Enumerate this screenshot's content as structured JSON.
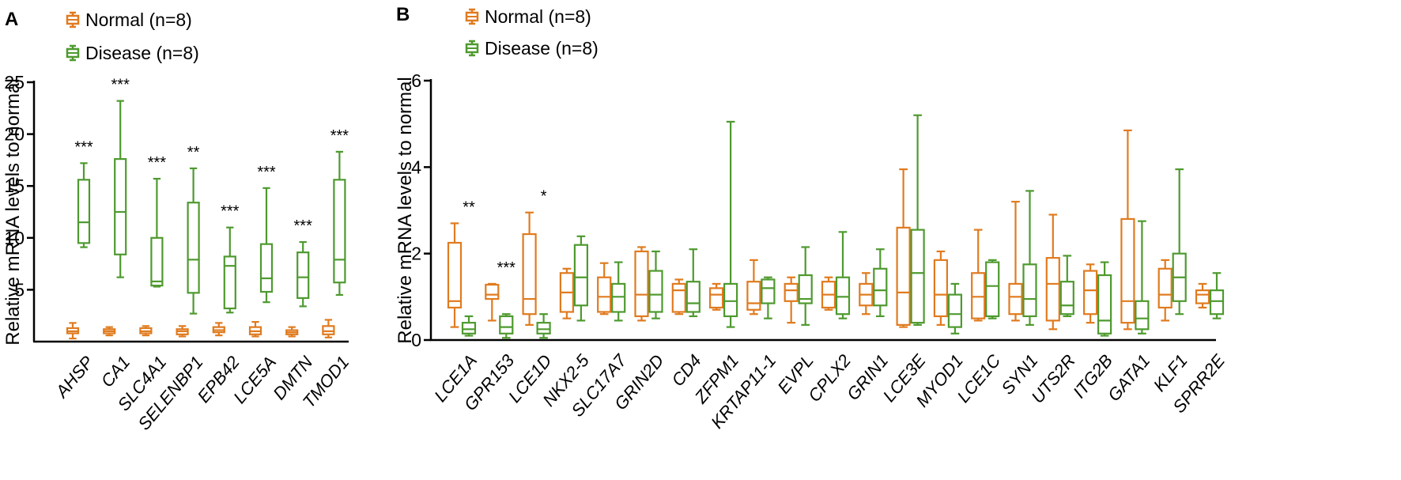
{
  "chart_data": [
    {
      "panel": "A",
      "type": "box",
      "title": "",
      "xlabel": "",
      "ylabel": "Relative mRNA levels to normal",
      "ylim": [
        0,
        25
      ],
      "yticks": [
        5,
        10,
        15,
        20,
        25
      ],
      "legend": [
        {
          "name": "Normal (n=8)",
          "color": "#E07B1F"
        },
        {
          "name": "Disease (n=8)",
          "color": "#4E9A2F"
        }
      ],
      "categories": [
        "AHSP",
        "CA1",
        "SLC4A1",
        "SELENBP1",
        "EPB42",
        "LCE5A",
        "DMTN",
        "TMOD1"
      ],
      "series": [
        {
          "name": "Normal (n=8)",
          "color": "#E07B1F",
          "boxes": [
            {
              "min": 0.3,
              "q1": 0.8,
              "median": 1.0,
              "q3": 1.3,
              "max": 1.8
            },
            {
              "min": 0.6,
              "q1": 0.8,
              "median": 1.0,
              "q3": 1.2,
              "max": 1.4
            },
            {
              "min": 0.6,
              "q1": 0.8,
              "median": 1.0,
              "q3": 1.3,
              "max": 1.5
            },
            {
              "min": 0.5,
              "q1": 0.7,
              "median": 1.0,
              "q3": 1.2,
              "max": 1.5
            },
            {
              "min": 0.6,
              "q1": 0.9,
              "median": 1.1,
              "q3": 1.4,
              "max": 1.8
            },
            {
              "min": 0.5,
              "q1": 0.7,
              "median": 1.0,
              "q3": 1.4,
              "max": 1.9
            },
            {
              "min": 0.5,
              "q1": 0.7,
              "median": 0.9,
              "q3": 1.1,
              "max": 1.4
            },
            {
              "min": 0.4,
              "q1": 0.7,
              "median": 1.0,
              "q3": 1.5,
              "max": 2.1
            }
          ]
        },
        {
          "name": "Disease (n=8)",
          "color": "#4E9A2F",
          "boxes": [
            {
              "min": 9.1,
              "q1": 9.5,
              "median": 11.5,
              "q3": 15.6,
              "max": 17.2
            },
            {
              "min": 6.2,
              "q1": 8.4,
              "median": 12.5,
              "q3": 17.6,
              "max": 23.2
            },
            {
              "min": 5.3,
              "q1": 5.4,
              "median": 5.8,
              "q3": 10.0,
              "max": 15.7
            },
            {
              "min": 2.7,
              "q1": 4.7,
              "median": 7.9,
              "q3": 13.4,
              "max": 16.7
            },
            {
              "min": 2.8,
              "q1": 3.2,
              "median": 7.3,
              "q3": 8.2,
              "max": 11.0
            },
            {
              "min": 3.8,
              "q1": 4.8,
              "median": 6.1,
              "q3": 9.4,
              "max": 14.8
            },
            {
              "min": 3.4,
              "q1": 4.2,
              "median": 6.2,
              "q3": 8.6,
              "max": 9.6
            },
            {
              "min": 4.5,
              "q1": 5.7,
              "median": 7.9,
              "q3": 15.6,
              "max": 18.3
            }
          ]
        }
      ],
      "annotations": [
        "***",
        "***",
        "***",
        "**",
        "***",
        "***",
        "***",
        "***"
      ]
    },
    {
      "panel": "B",
      "type": "box",
      "title": "",
      "xlabel": "",
      "ylabel": "Relative mRNA levels to normal",
      "ylim": [
        0,
        6
      ],
      "yticks": [
        0,
        2,
        4,
        6
      ],
      "legend": [
        {
          "name": "Normal (n=8)",
          "color": "#E07B1F"
        },
        {
          "name": "Disease (n=8)",
          "color": "#4E9A2F"
        }
      ],
      "categories": [
        "LCE1A",
        "GPR153",
        "LCE1D",
        "NKX2-5",
        "SLC17A7",
        "GRIN2D",
        "CD4",
        "ZFPM1",
        "KRTAP11-1",
        "EVPL",
        "CPLX2",
        "GRIN1",
        "LCE3E",
        "MYOD1",
        "LCE1C",
        "SYN1",
        "UTS2R",
        "ITG2B",
        "GATA1",
        "KLF1",
        "SPRR2E"
      ],
      "series": [
        {
          "name": "Normal (n=8)",
          "color": "#E07B1F",
          "boxes": [
            {
              "min": 0.3,
              "q1": 0.75,
              "median": 0.9,
              "q3": 2.25,
              "max": 2.7
            },
            {
              "min": 0.45,
              "q1": 0.95,
              "median": 1.05,
              "q3": 1.28,
              "max": 1.3
            },
            {
              "min": 0.35,
              "q1": 0.6,
              "median": 0.95,
              "q3": 2.45,
              "max": 2.95
            },
            {
              "min": 0.5,
              "q1": 0.65,
              "median": 1.1,
              "q3": 1.55,
              "max": 1.65
            },
            {
              "min": 0.6,
              "q1": 0.65,
              "median": 1.0,
              "q3": 1.45,
              "max": 1.78
            },
            {
              "min": 0.45,
              "q1": 0.55,
              "median": 1.05,
              "q3": 2.05,
              "max": 2.15
            },
            {
              "min": 0.6,
              "q1": 0.65,
              "median": 1.15,
              "q3": 1.3,
              "max": 1.4
            },
            {
              "min": 0.7,
              "q1": 0.75,
              "median": 1.05,
              "q3": 1.2,
              "max": 1.3
            },
            {
              "min": 0.6,
              "q1": 0.7,
              "median": 0.85,
              "q3": 1.35,
              "max": 1.85
            },
            {
              "min": 0.4,
              "q1": 0.9,
              "median": 1.15,
              "q3": 1.3,
              "max": 1.45
            },
            {
              "min": 0.7,
              "q1": 0.75,
              "median": 1.05,
              "q3": 1.35,
              "max": 1.45
            },
            {
              "min": 0.6,
              "q1": 0.8,
              "median": 1.05,
              "q3": 1.3,
              "max": 1.55
            },
            {
              "min": 0.3,
              "q1": 0.35,
              "median": 1.1,
              "q3": 2.6,
              "max": 3.95
            },
            {
              "min": 0.35,
              "q1": 0.55,
              "median": 1.05,
              "q3": 1.85,
              "max": 2.05
            },
            {
              "min": 0.45,
              "q1": 0.5,
              "median": 1.0,
              "q3": 1.55,
              "max": 2.55
            },
            {
              "min": 0.45,
              "q1": 0.6,
              "median": 1.0,
              "q3": 1.3,
              "max": 3.2
            },
            {
              "min": 0.25,
              "q1": 0.45,
              "median": 1.3,
              "q3": 1.9,
              "max": 2.9
            },
            {
              "min": 0.4,
              "q1": 0.6,
              "median": 1.15,
              "q3": 1.6,
              "max": 1.75
            },
            {
              "min": 0.25,
              "q1": 0.4,
              "median": 0.9,
              "q3": 2.8,
              "max": 4.85
            },
            {
              "min": 0.45,
              "q1": 0.75,
              "median": 1.05,
              "q3": 1.65,
              "max": 1.85
            },
            {
              "min": 0.75,
              "q1": 0.85,
              "median": 1.05,
              "q3": 1.15,
              "max": 1.3
            }
          ]
        },
        {
          "name": "Disease (n=8)",
          "color": "#4E9A2F",
          "boxes": [
            {
              "min": 0.1,
              "q1": 0.15,
              "median": 0.25,
              "q3": 0.4,
              "max": 0.55
            },
            {
              "min": 0.05,
              "q1": 0.15,
              "median": 0.3,
              "q3": 0.55,
              "max": 0.6
            },
            {
              "min": 0.05,
              "q1": 0.15,
              "median": 0.25,
              "q3": 0.4,
              "max": 0.6
            },
            {
              "min": 0.45,
              "q1": 0.8,
              "median": 1.45,
              "q3": 2.2,
              "max": 2.4
            },
            {
              "min": 0.45,
              "q1": 0.65,
              "median": 1.0,
              "q3": 1.3,
              "max": 1.8
            },
            {
              "min": 0.5,
              "q1": 0.65,
              "median": 1.05,
              "q3": 1.6,
              "max": 2.05
            },
            {
              "min": 0.55,
              "q1": 0.65,
              "median": 0.85,
              "q3": 1.35,
              "max": 2.1
            },
            {
              "min": 0.3,
              "q1": 0.55,
              "median": 0.9,
              "q3": 1.3,
              "max": 5.05
            },
            {
              "min": 0.5,
              "q1": 0.85,
              "median": 1.2,
              "q3": 1.4,
              "max": 1.45
            },
            {
              "min": 0.35,
              "q1": 0.85,
              "median": 0.95,
              "q3": 1.5,
              "max": 2.15
            },
            {
              "min": 0.5,
              "q1": 0.6,
              "median": 1.0,
              "q3": 1.45,
              "max": 2.5
            },
            {
              "min": 0.55,
              "q1": 0.8,
              "median": 1.15,
              "q3": 1.65,
              "max": 2.1
            },
            {
              "min": 0.35,
              "q1": 0.4,
              "median": 1.55,
              "q3": 2.55,
              "max": 5.2
            },
            {
              "min": 0.15,
              "q1": 0.3,
              "median": 0.6,
              "q3": 1.05,
              "max": 1.3
            },
            {
              "min": 0.5,
              "q1": 0.55,
              "median": 1.25,
              "q3": 1.8,
              "max": 1.85
            },
            {
              "min": 0.35,
              "q1": 0.55,
              "median": 0.95,
              "q3": 1.75,
              "max": 3.45
            },
            {
              "min": 0.55,
              "q1": 0.6,
              "median": 0.8,
              "q3": 1.35,
              "max": 1.95
            },
            {
              "min": 0.1,
              "q1": 0.15,
              "median": 0.45,
              "q3": 1.5,
              "max": 1.8
            },
            {
              "min": 0.15,
              "q1": 0.25,
              "median": 0.5,
              "q3": 0.9,
              "max": 2.75
            },
            {
              "min": 0.6,
              "q1": 0.9,
              "median": 1.45,
              "q3": 2.0,
              "max": 3.95
            },
            {
              "min": 0.5,
              "q1": 0.6,
              "median": 0.9,
              "q3": 1.15,
              "max": 1.55
            }
          ]
        }
      ],
      "annotations": [
        "**",
        "***",
        "*",
        "",
        "",
        "",
        "",
        "",
        "",
        "",
        "",
        "",
        "",
        "",
        "",
        "",
        "",
        "",
        "",
        "",
        ""
      ]
    }
  ]
}
